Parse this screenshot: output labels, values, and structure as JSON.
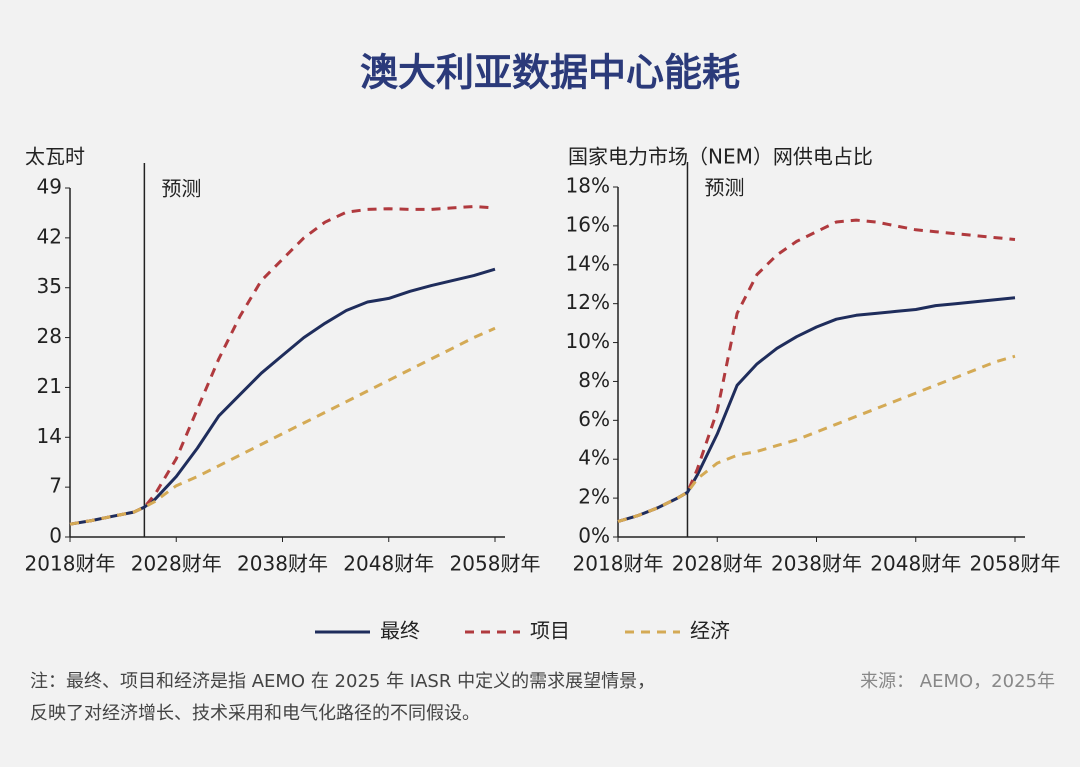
{
  "title": "澳大利亚数据中心能耗",
  "note": [
    "注：最终、项目和经济是指 AEMO 在 2025 年 IASR 中定义的需求展望情景，",
    "反映了对经济增长、技术采用和电气化路径的不同假设。"
  ],
  "source": "来源： AEMO，2025年",
  "chart_data": [
    {
      "type": "line",
      "y_label": "太瓦时",
      "annotation": {
        "text": "预测",
        "x": 2025
      },
      "x": [
        2018,
        2020,
        2022,
        2024,
        2025,
        2026,
        2028,
        2030,
        2032,
        2034,
        2036,
        2038,
        2040,
        2042,
        2044,
        2046,
        2048,
        2050,
        2052,
        2054,
        2056,
        2058
      ],
      "xlim": [
        2018,
        2058
      ],
      "xticks": [
        {
          "value": 2018,
          "label": "2018财年"
        },
        {
          "value": 2028,
          "label": "2028财年"
        },
        {
          "value": 2038,
          "label": "2038财年"
        },
        {
          "value": 2048,
          "label": "2048财年"
        },
        {
          "value": 2058,
          "label": "2058财年"
        }
      ],
      "ylim": [
        0,
        49
      ],
      "yticks": [
        0,
        7,
        14,
        21,
        28,
        35,
        42,
        49
      ],
      "series": [
        {
          "name": "最终",
          "color": "#1f2d5c",
          "dash": false,
          "values": [
            1.8,
            2.3,
            2.9,
            3.5,
            4.2,
            5.3,
            8.5,
            12.5,
            17,
            20,
            23,
            25.5,
            28,
            30,
            31.8,
            33,
            33.5,
            34.5,
            35.3,
            36,
            36.7,
            37.6
          ]
        },
        {
          "name": "项目",
          "color": "#b03a3e",
          "dash": true,
          "values": [
            1.8,
            2.3,
            2.9,
            3.5,
            4.2,
            6,
            11,
            18,
            25,
            31,
            36,
            39,
            42,
            44.2,
            45.6,
            46,
            46.1,
            46,
            46,
            46.2,
            46.4,
            46.2
          ]
        },
        {
          "name": "经济",
          "color": "#d4aa55",
          "dash": true,
          "values": [
            1.8,
            2.3,
            2.9,
            3.5,
            4.2,
            5,
            7.2,
            8.5,
            10,
            11.5,
            13,
            14.5,
            16,
            17.5,
            19,
            20.5,
            22,
            23.5,
            25,
            26.5,
            28,
            29.3
          ]
        }
      ]
    },
    {
      "type": "line",
      "y_label": "国家电力市场（NEM）网供电占比",
      "annotation": {
        "text": "预测",
        "x": 2025
      },
      "x": [
        2018,
        2020,
        2022,
        2024,
        2025,
        2026,
        2028,
        2030,
        2032,
        2034,
        2036,
        2038,
        2040,
        2042,
        2044,
        2046,
        2048,
        2050,
        2052,
        2054,
        2056,
        2058
      ],
      "xlim": [
        2018,
        2058
      ],
      "xticks": [
        {
          "value": 2018,
          "label": "2018财年"
        },
        {
          "value": 2028,
          "label": "2028财年"
        },
        {
          "value": 2038,
          "label": "2038财年"
        },
        {
          "value": 2048,
          "label": "2048财年"
        },
        {
          "value": 2058,
          "label": "2058财年"
        }
      ],
      "ylim": [
        0,
        18
      ],
      "yticks": [
        {
          "value": 0,
          "label": "0%"
        },
        {
          "value": 2,
          "label": "2%"
        },
        {
          "value": 4,
          "label": "4%"
        },
        {
          "value": 6,
          "label": "6%"
        },
        {
          "value": 8,
          "label": "8%"
        },
        {
          "value": 10,
          "label": "10%"
        },
        {
          "value": 12,
          "label": "12%"
        },
        {
          "value": 14,
          "label": "14%"
        },
        {
          "value": 16,
          "label": "16%"
        },
        {
          "value": 18,
          "label": "18%"
        }
      ],
      "series": [
        {
          "color": "#1f2d5c",
          "dash": false,
          "values": [
            0.8,
            1.1,
            1.5,
            2.0,
            2.3,
            3.2,
            5.3,
            7.8,
            8.9,
            9.7,
            10.3,
            10.8,
            11.2,
            11.4,
            11.5,
            11.6,
            11.7,
            11.9,
            12.0,
            12.1,
            12.2,
            12.3
          ]
        },
        {
          "color": "#b03a3e",
          "dash": true,
          "values": [
            0.8,
            1.1,
            1.5,
            2.0,
            2.3,
            3.5,
            6.5,
            11.5,
            13.5,
            14.5,
            15.2,
            15.7,
            16.2,
            16.3,
            16.2,
            16,
            15.8,
            15.7,
            15.6,
            15.5,
            15.4,
            15.3
          ]
        },
        {
          "color": "#d4aa55",
          "dash": true,
          "values": [
            0.8,
            1.1,
            1.5,
            2.0,
            2.3,
            3.0,
            3.8,
            4.2,
            4.4,
            4.7,
            5.0,
            5.4,
            5.8,
            6.2,
            6.6,
            7.0,
            7.4,
            7.8,
            8.2,
            8.6,
            9.0,
            9.3
          ]
        }
      ]
    }
  ]
}
